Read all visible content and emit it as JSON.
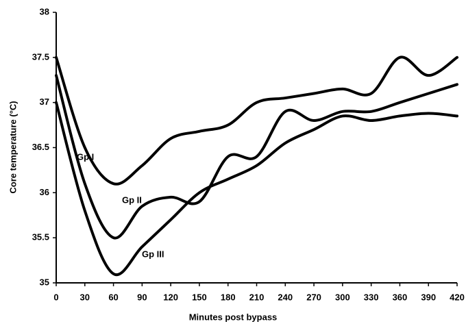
{
  "chart_data": {
    "type": "line",
    "x_label": "Minutes post bypass",
    "y_label": "Core temperature (°C)",
    "x": [
      0,
      30,
      60,
      90,
      120,
      150,
      180,
      210,
      240,
      270,
      300,
      330,
      360,
      390,
      420
    ],
    "series": [
      {
        "name": "Gp I",
        "color": "#000000",
        "values": [
          37.5,
          36.5,
          36.1,
          36.3,
          36.6,
          36.68,
          36.75,
          37.0,
          37.05,
          37.1,
          37.15,
          37.1,
          37.5,
          37.3,
          37.5
        ]
      },
      {
        "name": "Gp II",
        "color": "#000000",
        "values": [
          37.3,
          36.1,
          35.5,
          35.85,
          35.95,
          35.9,
          36.4,
          36.4,
          36.9,
          36.8,
          36.9,
          36.9,
          37.0,
          37.1,
          37.2
        ]
      },
      {
        "name": "Gp III",
        "color": "#000000",
        "values": [
          37.0,
          35.8,
          35.1,
          35.4,
          35.7,
          36.0,
          36.15,
          36.3,
          36.55,
          36.7,
          36.85,
          36.8,
          36.85,
          36.88,
          36.85
        ]
      }
    ],
    "xlim": [
      0,
      420
    ],
    "xticks": [
      0,
      30,
      60,
      90,
      120,
      150,
      180,
      210,
      240,
      270,
      300,
      330,
      360,
      390,
      420
    ],
    "ylim": [
      35,
      38
    ],
    "yticks": [
      35,
      35.5,
      36,
      36.5,
      37,
      37.5,
      38
    ],
    "grid": false
  }
}
